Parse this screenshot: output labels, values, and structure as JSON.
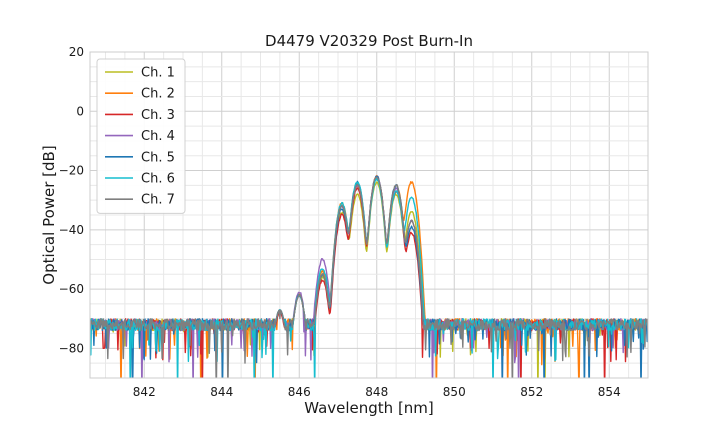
{
  "chart_data": {
    "type": "line",
    "title": "D4479 V20329 Post Burn-In",
    "xlabel": "Wavelength [nm]",
    "ylabel": "Optical Power [dB]",
    "xlim": [
      840.6,
      855.0
    ],
    "ylim": [
      -90,
      20
    ],
    "xticks": [
      842,
      844,
      846,
      848,
      850,
      852,
      854
    ],
    "yticks": [
      -80,
      -60,
      -40,
      -20,
      0,
      20
    ],
    "grid": true,
    "legend_position": "top-left",
    "noise_floor_db": -72,
    "series": [
      {
        "name": "Ch. 1",
        "color": "#bcbd22",
        "peaks_nm": [
          845.5,
          846.0,
          846.6,
          847.1,
          847.5,
          848.0,
          848.5,
          848.9
        ],
        "peaks_db": [
          -67,
          -62,
          -56,
          -34,
          -28,
          -24,
          -28,
          -34
        ]
      },
      {
        "name": "Ch. 2",
        "color": "#ff7f0e",
        "peaks_nm": [
          845.5,
          846.0,
          846.6,
          847.1,
          847.5,
          848.0,
          848.5,
          848.9
        ],
        "peaks_db": [
          -67,
          -62,
          -54,
          -31,
          -25,
          -22,
          -25,
          -24
        ]
      },
      {
        "name": "Ch. 3",
        "color": "#d62728",
        "peaks_nm": [
          845.5,
          846.0,
          846.6,
          847.1,
          847.5,
          848.0,
          848.5,
          848.9
        ],
        "peaks_db": [
          -68,
          -62,
          -57,
          -35,
          -26,
          -22,
          -27,
          -41
        ]
      },
      {
        "name": "Ch. 4",
        "color": "#9467bd",
        "peaks_nm": [
          845.5,
          846.0,
          846.6,
          847.1,
          847.5,
          848.0,
          848.5,
          848.9
        ],
        "peaks_db": [
          -67,
          -61,
          -50,
          -32,
          -25,
          -22,
          -26,
          -37
        ]
      },
      {
        "name": "Ch. 5",
        "color": "#1f77b4",
        "peaks_nm": [
          845.5,
          846.0,
          846.6,
          847.1,
          847.5,
          848.0,
          848.5,
          848.9
        ],
        "peaks_db": [
          -67,
          -62,
          -55,
          -33,
          -24,
          -22,
          -25,
          -39
        ]
      },
      {
        "name": "Ch. 6",
        "color": "#17becf",
        "peaks_nm": [
          845.5,
          846.0,
          846.6,
          847.1,
          847.5,
          848.0,
          848.5,
          848.9
        ],
        "peaks_db": [
          -67,
          -62,
          -53,
          -31,
          -24,
          -23,
          -27,
          -29
        ]
      },
      {
        "name": "Ch. 7",
        "color": "#7f7f7f",
        "peaks_nm": [
          845.5,
          846.0,
          846.6,
          847.1,
          847.5,
          848.0,
          848.5,
          848.9
        ],
        "peaks_db": [
          -67,
          -62,
          -55,
          -32,
          -25,
          -22,
          -25,
          -37
        ]
      }
    ]
  }
}
